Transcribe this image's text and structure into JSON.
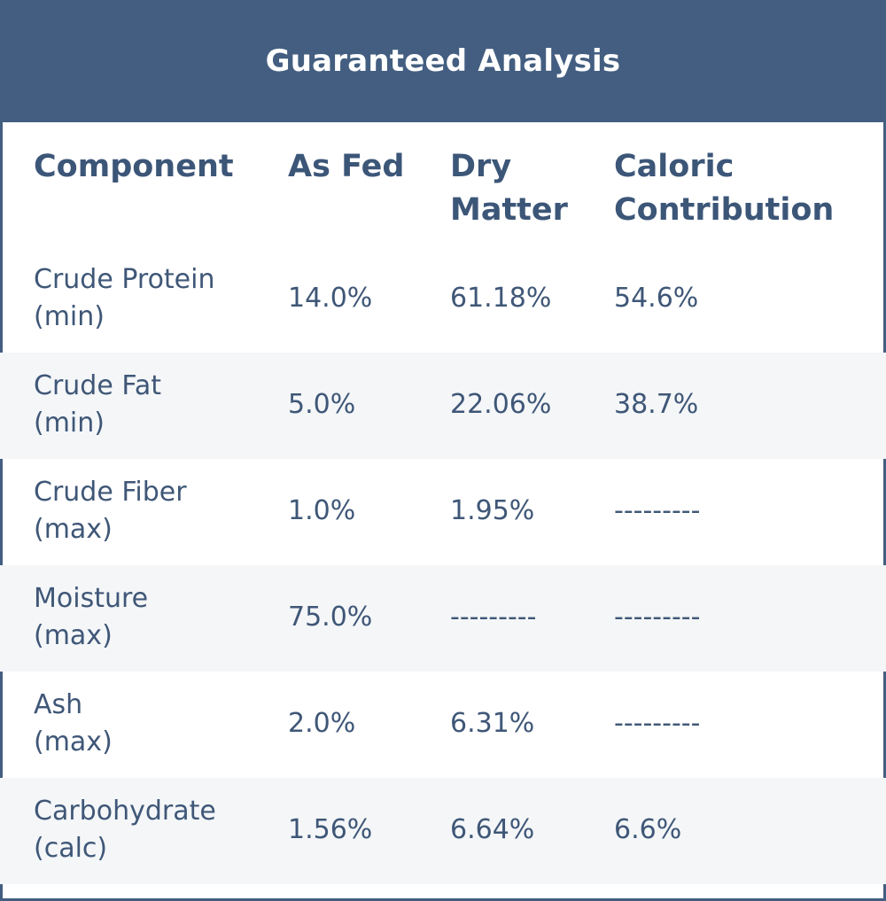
{
  "title": "Guaranteed Analysis",
  "headers": {
    "component": "Component",
    "as_fed": "As Fed",
    "dry_matter_1": "Dry",
    "dry_matter_2": "Matter",
    "caloric_1": "Caloric",
    "caloric_2": "Contribution"
  },
  "rows": [
    {
      "name": "Crude Protein",
      "qual": "(min)",
      "as_fed": "14.0%",
      "dry_matter": "61.18%",
      "caloric": "54.6%"
    },
    {
      "name": "Crude Fat",
      "qual": "(min)",
      "as_fed": "5.0%",
      "dry_matter": "22.06%",
      "caloric": "38.7%"
    },
    {
      "name": "Crude Fiber",
      "qual": "(max)",
      "as_fed": "1.0%",
      "dry_matter": "1.95%",
      "caloric": "---------"
    },
    {
      "name": "Moisture",
      "qual": "(max)",
      "as_fed": "75.0%",
      "dry_matter": "---------",
      "caloric": "---------"
    },
    {
      "name": "Ash",
      "qual": "(max)",
      "as_fed": "2.0%",
      "dry_matter": "6.31%",
      "caloric": "---------"
    },
    {
      "name": "Carbohydrate",
      "qual": "(calc)",
      "as_fed": "1.56%",
      "dry_matter": "6.64%",
      "caloric": "6.6%"
    }
  ],
  "colors": {
    "banner": "#435e80",
    "header_text": "#3c5678",
    "body_text": "#3f5777",
    "stripe": "#f4f6f8"
  }
}
